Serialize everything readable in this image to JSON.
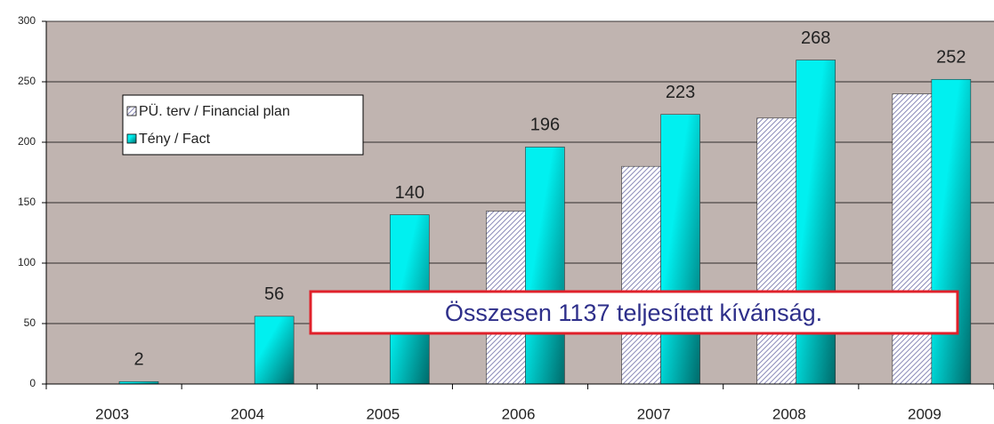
{
  "chart_data": {
    "type": "bar",
    "categories": [
      "2003",
      "2004",
      "2005",
      "2006",
      "2007",
      "2008",
      "2009"
    ],
    "series": [
      {
        "name": "PÜ. terv / Financial plan",
        "color": "#8a8ab8",
        "values": [
          null,
          null,
          null,
          143,
          180,
          220,
          240
        ]
      },
      {
        "name": "Tény / Fact",
        "color": "#00f0f0",
        "values": [
          2,
          56,
          140,
          196,
          223,
          268,
          252
        ],
        "value_labels": [
          "2",
          "56",
          "140",
          "196",
          "223",
          "268",
          "252"
        ]
      }
    ],
    "ylim": [
      0,
      300
    ],
    "yticks": [
      0,
      50,
      100,
      150,
      200,
      250,
      300
    ],
    "grid": true,
    "legend": "upper left",
    "annotation": "Összesen  1137 teljesített kívánság."
  }
}
